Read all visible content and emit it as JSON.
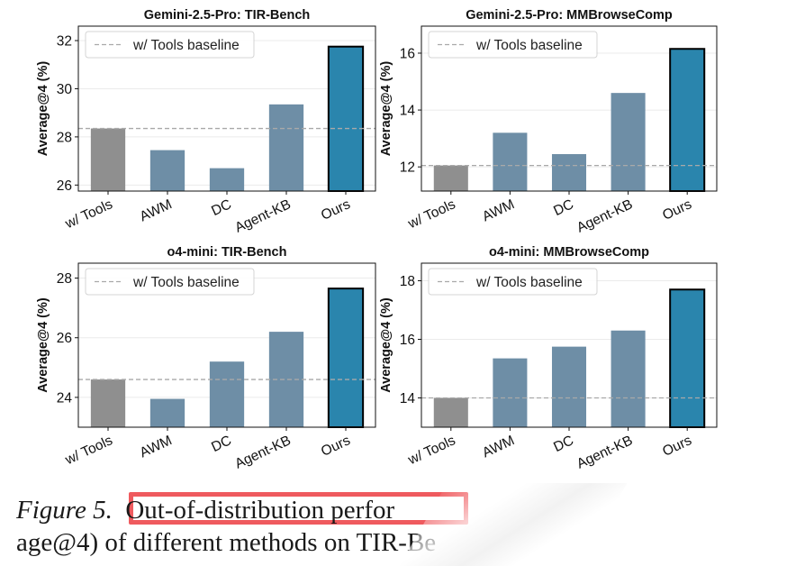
{
  "colors": {
    "baseline_bar": "#8f8f8f",
    "method_bar": "#6e8ea6",
    "ours_bar": "#2a85ad",
    "baseline_line": "#a9a9a9",
    "highlight": "#ef5a5e"
  },
  "legend_label": "w/ Tools baseline",
  "chart_data": [
    {
      "type": "bar",
      "title": "Gemini-2.5-Pro: TIR-Bench",
      "categories": [
        "w/ Tools",
        "AWM",
        "DC",
        "Agent-KB",
        "Ours"
      ],
      "values": [
        28.35,
        27.45,
        26.7,
        29.35,
        31.75
      ],
      "baseline": 28.35,
      "ylabel": "Average@4 (%)",
      "ylim": [
        25.75,
        32.6
      ],
      "yticks": [
        26,
        28,
        30,
        32
      ]
    },
    {
      "type": "bar",
      "title": "Gemini-2.5-Pro: MMBrowseComp",
      "categories": [
        "w/ Tools",
        "AWM",
        "DC",
        "Agent-KB",
        "Ours"
      ],
      "values": [
        12.05,
        13.2,
        12.45,
        14.6,
        16.15
      ],
      "baseline": 12.05,
      "ylabel": "Average@4 (%)",
      "ylim": [
        11.15,
        16.95
      ],
      "yticks": [
        12,
        14,
        16
      ]
    },
    {
      "type": "bar",
      "title": "o4-mini: TIR-Bench",
      "categories": [
        "w/ Tools",
        "AWM",
        "DC",
        "Agent-KB",
        "Ours"
      ],
      "values": [
        24.6,
        23.95,
        25.2,
        26.2,
        27.65
      ],
      "baseline": 24.6,
      "ylabel": "Average@4 (%)",
      "ylim": [
        23.0,
        28.5
      ],
      "yticks": [
        24,
        26,
        28
      ]
    },
    {
      "type": "bar",
      "title": "o4-mini: MMBrowseComp",
      "categories": [
        "w/ Tools",
        "AWM",
        "DC",
        "Agent-KB",
        "Ours"
      ],
      "values": [
        14.0,
        15.35,
        15.75,
        16.3,
        17.7
      ],
      "baseline": 14.0,
      "ylabel": "Average@4 (%)",
      "ylim": [
        13.0,
        18.6
      ],
      "yticks": [
        14,
        16,
        18
      ]
    }
  ],
  "caption": {
    "figure_label": "Figure 5.",
    "line1_rest": "Out-of-distribution perfor",
    "line2": "age@4) of different methods on TIR-Be"
  }
}
